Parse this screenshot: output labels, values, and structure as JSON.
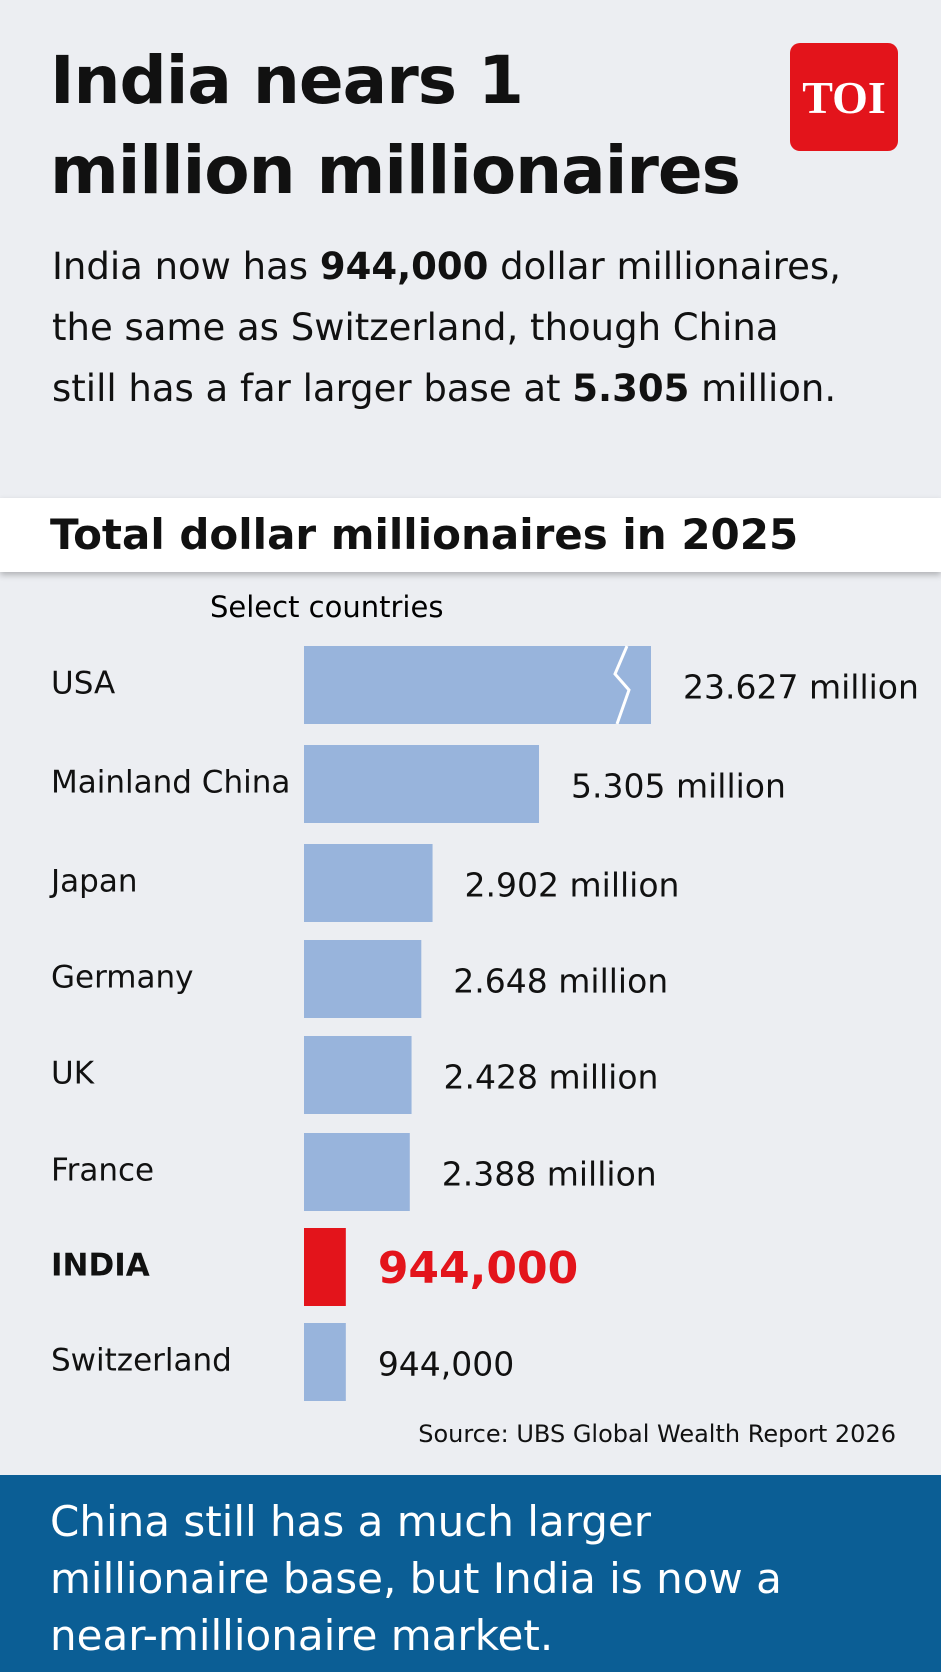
{
  "header": {
    "title": "India nears 1 million millionaires",
    "logo": "TOI",
    "subtitle": [
      {
        "text": "India now has ",
        "bold": false
      },
      {
        "text": "944,000",
        "bold": true
      },
      {
        "text": " dollar millionaires, the same as Switzerland, though China still has a far larger base at ",
        "bold": false
      },
      {
        "text": "5.305",
        "bold": true
      },
      {
        "text": " million.",
        "bold": false
      }
    ]
  },
  "chart_data": {
    "type": "bar",
    "orientation": "horizontal",
    "title": "Total dollar millionaires in 2025",
    "note": "Select countries",
    "categories": [
      "USA",
      "Mainland China",
      "Japan",
      "Germany",
      "UK",
      "France",
      "INDIA",
      "Switzerland"
    ],
    "values": [
      23627000,
      5305000,
      2902000,
      2648000,
      2428000,
      2388000,
      944000,
      944000
    ],
    "value_labels": [
      "23.627 million",
      "5.305 million",
      "2.902 million",
      "2.648 million",
      "2.428 million",
      "2.388 million",
      "944,000",
      "944,000"
    ],
    "color": "#98b4dc",
    "highlight": 6,
    "highlight_color": "#e3141b",
    "source": "Source: UBS Global Wealth Report 2026"
  },
  "footer": {
    "text": "China still has a much larger millionaire base, but India is now a near-millionaire market."
  }
}
